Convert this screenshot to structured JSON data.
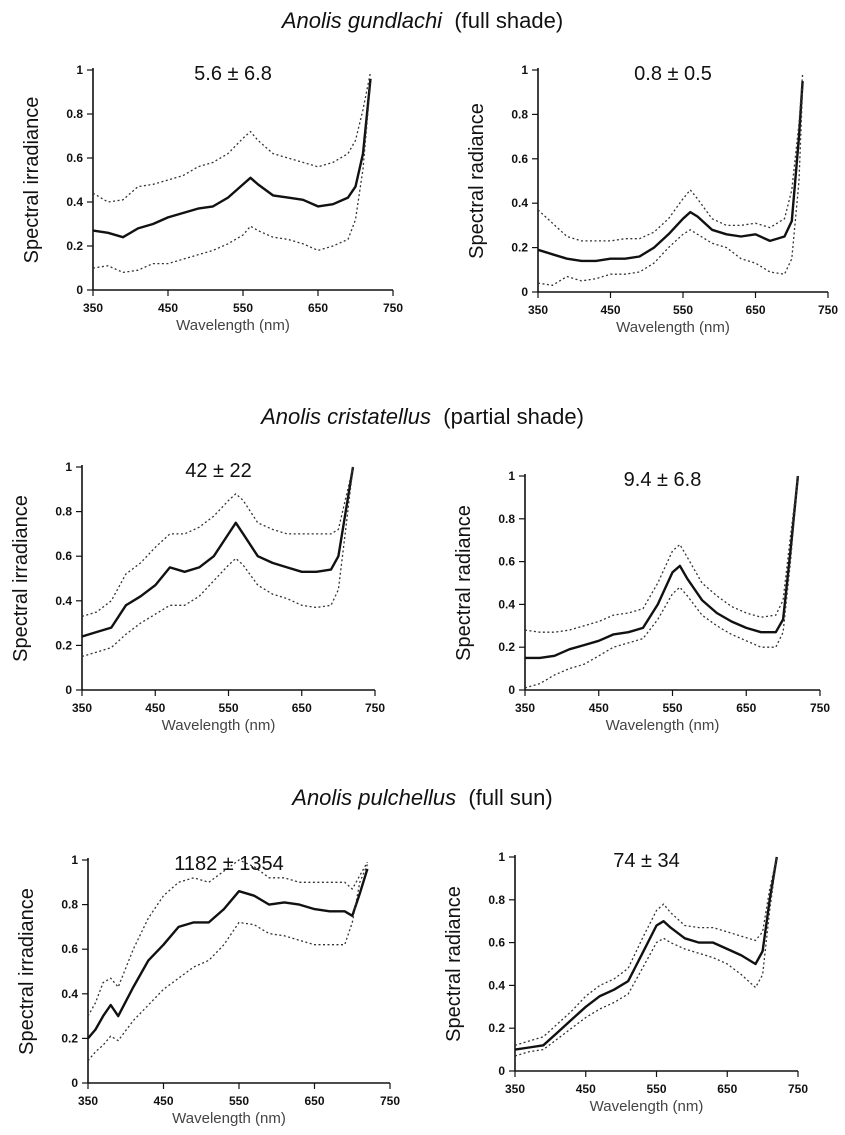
{
  "sections": [
    {
      "species": "Anolis gundlachi",
      "condition": "(full shade)"
    },
    {
      "species": "Anolis cristatellus",
      "condition": "(partial shade)"
    },
    {
      "species": "Anolis pulchellus",
      "condition": "(full sun)"
    }
  ],
  "chart_data": [
    {
      "type": "line",
      "title": "5.6 ± 6.8",
      "xlabel": "Wavelength (nm)",
      "ylabel": "Spectral irradiance",
      "xlim": [
        350,
        750
      ],
      "ylim": [
        0,
        1
      ],
      "xticks": [
        350,
        450,
        550,
        650,
        750
      ],
      "yticks": [
        0,
        0.2,
        0.4,
        0.6,
        0.8,
        1
      ],
      "x": [
        350,
        370,
        390,
        410,
        430,
        450,
        470,
        490,
        510,
        530,
        550,
        560,
        570,
        590,
        610,
        630,
        650,
        670,
        690,
        700,
        710,
        720
      ],
      "series": [
        {
          "style": "solid",
          "values": [
            0.27,
            0.26,
            0.24,
            0.28,
            0.3,
            0.33,
            0.35,
            0.37,
            0.38,
            0.42,
            0.48,
            0.51,
            0.48,
            0.43,
            0.42,
            0.41,
            0.38,
            0.39,
            0.42,
            0.47,
            0.62,
            0.96
          ]
        },
        {
          "style": "dotted",
          "values": [
            0.44,
            0.4,
            0.41,
            0.47,
            0.48,
            0.5,
            0.52,
            0.56,
            0.58,
            0.62,
            0.69,
            0.72,
            0.68,
            0.62,
            0.6,
            0.58,
            0.56,
            0.58,
            0.62,
            0.68,
            0.82,
            0.99
          ]
        },
        {
          "style": "dotted",
          "values": [
            0.1,
            0.11,
            0.08,
            0.09,
            0.12,
            0.12,
            0.14,
            0.16,
            0.18,
            0.21,
            0.25,
            0.29,
            0.27,
            0.24,
            0.23,
            0.21,
            0.18,
            0.2,
            0.23,
            0.32,
            0.55,
            0.94
          ]
        }
      ]
    },
    {
      "type": "line",
      "title": "0.8 ± 0.5",
      "xlabel": "Wavelength (nm)",
      "ylabel": "Spectral radiance",
      "xlim": [
        350,
        750
      ],
      "ylim": [
        0,
        1
      ],
      "xticks": [
        350,
        450,
        550,
        650,
        750
      ],
      "yticks": [
        0,
        0.2,
        0.4,
        0.6,
        0.8,
        1
      ],
      "x": [
        350,
        370,
        390,
        410,
        430,
        450,
        470,
        490,
        510,
        530,
        550,
        560,
        570,
        590,
        610,
        630,
        650,
        670,
        690,
        700,
        710,
        715
      ],
      "series": [
        {
          "style": "solid",
          "values": [
            0.19,
            0.17,
            0.15,
            0.14,
            0.14,
            0.15,
            0.15,
            0.16,
            0.2,
            0.26,
            0.33,
            0.36,
            0.34,
            0.28,
            0.26,
            0.25,
            0.26,
            0.23,
            0.25,
            0.32,
            0.7,
            0.95
          ]
        },
        {
          "style": "dotted",
          "values": [
            0.37,
            0.31,
            0.25,
            0.23,
            0.23,
            0.23,
            0.24,
            0.24,
            0.27,
            0.33,
            0.42,
            0.46,
            0.42,
            0.33,
            0.3,
            0.3,
            0.31,
            0.29,
            0.33,
            0.46,
            0.76,
            0.98
          ]
        },
        {
          "style": "dotted",
          "values": [
            0.04,
            0.03,
            0.07,
            0.05,
            0.06,
            0.08,
            0.08,
            0.09,
            0.13,
            0.2,
            0.26,
            0.28,
            0.26,
            0.22,
            0.2,
            0.15,
            0.13,
            0.09,
            0.08,
            0.15,
            0.5,
            0.92
          ]
        }
      ]
    },
    {
      "type": "line",
      "title": "42 ± 22",
      "xlabel": "Wavelength (nm)",
      "ylabel": "Spectral irradiance",
      "xlim": [
        350,
        750
      ],
      "ylim": [
        0,
        1
      ],
      "xticks": [
        350,
        450,
        550,
        650,
        750
      ],
      "yticks": [
        0,
        0.2,
        0.4,
        0.6,
        0.8,
        1
      ],
      "x": [
        350,
        370,
        390,
        410,
        430,
        450,
        470,
        490,
        510,
        530,
        550,
        560,
        570,
        590,
        610,
        630,
        650,
        670,
        690,
        700,
        710,
        720
      ],
      "series": [
        {
          "style": "solid",
          "values": [
            0.24,
            0.26,
            0.28,
            0.38,
            0.42,
            0.47,
            0.55,
            0.53,
            0.55,
            0.6,
            0.7,
            0.75,
            0.7,
            0.6,
            0.57,
            0.55,
            0.53,
            0.53,
            0.54,
            0.6,
            0.8,
            1.0
          ]
        },
        {
          "style": "dotted",
          "values": [
            0.33,
            0.35,
            0.4,
            0.52,
            0.57,
            0.64,
            0.7,
            0.7,
            0.73,
            0.78,
            0.85,
            0.88,
            0.85,
            0.75,
            0.72,
            0.7,
            0.7,
            0.7,
            0.7,
            0.72,
            0.86,
            1.0
          ]
        },
        {
          "style": "dotted",
          "values": [
            0.15,
            0.17,
            0.19,
            0.25,
            0.3,
            0.34,
            0.38,
            0.38,
            0.42,
            0.49,
            0.56,
            0.59,
            0.56,
            0.47,
            0.43,
            0.41,
            0.38,
            0.37,
            0.38,
            0.45,
            0.72,
            1.0
          ]
        }
      ]
    },
    {
      "type": "line",
      "title": "9.4 ± 6.8",
      "xlabel": "Wavelength (nm)",
      "ylabel": "Spectral radiance",
      "xlim": [
        350,
        750
      ],
      "ylim": [
        0,
        1
      ],
      "xticks": [
        350,
        450,
        550,
        650,
        750
      ],
      "yticks": [
        0,
        0.2,
        0.4,
        0.6,
        0.8,
        1
      ],
      "x": [
        350,
        370,
        390,
        410,
        430,
        450,
        470,
        490,
        510,
        530,
        550,
        560,
        570,
        590,
        610,
        630,
        650,
        670,
        690,
        700,
        710,
        720
      ],
      "series": [
        {
          "style": "solid",
          "values": [
            0.15,
            0.15,
            0.16,
            0.19,
            0.21,
            0.23,
            0.26,
            0.27,
            0.29,
            0.4,
            0.55,
            0.58,
            0.52,
            0.42,
            0.36,
            0.32,
            0.29,
            0.27,
            0.27,
            0.33,
            0.65,
            1.0
          ]
        },
        {
          "style": "dotted",
          "values": [
            0.28,
            0.27,
            0.27,
            0.28,
            0.3,
            0.32,
            0.35,
            0.36,
            0.38,
            0.5,
            0.65,
            0.68,
            0.62,
            0.5,
            0.44,
            0.39,
            0.36,
            0.34,
            0.35,
            0.42,
            0.72,
            1.0
          ]
        },
        {
          "style": "dotted",
          "values": [
            0.01,
            0.03,
            0.07,
            0.1,
            0.12,
            0.16,
            0.2,
            0.22,
            0.24,
            0.33,
            0.45,
            0.48,
            0.44,
            0.35,
            0.3,
            0.26,
            0.23,
            0.2,
            0.2,
            0.27,
            0.6,
            1.0
          ]
        }
      ]
    },
    {
      "type": "line",
      "title": "1182 ± 1354",
      "xlabel": "Wavelength (nm)",
      "ylabel": "Spectral irradiance",
      "xlim": [
        350,
        750
      ],
      "ylim": [
        0,
        1
      ],
      "xticks": [
        350,
        450,
        550,
        650,
        750
      ],
      "yticks": [
        0,
        0.2,
        0.4,
        0.6,
        0.8,
        1
      ],
      "x": [
        350,
        360,
        370,
        380,
        390,
        410,
        430,
        450,
        470,
        490,
        510,
        530,
        550,
        570,
        590,
        610,
        630,
        650,
        670,
        690,
        700,
        710,
        720
      ],
      "series": [
        {
          "style": "solid",
          "values": [
            0.2,
            0.24,
            0.3,
            0.35,
            0.3,
            0.43,
            0.55,
            0.62,
            0.7,
            0.72,
            0.72,
            0.78,
            0.86,
            0.84,
            0.8,
            0.81,
            0.8,
            0.78,
            0.77,
            0.77,
            0.75,
            0.85,
            0.96
          ]
        },
        {
          "style": "dotted",
          "values": [
            0.3,
            0.36,
            0.45,
            0.47,
            0.43,
            0.6,
            0.74,
            0.84,
            0.9,
            0.92,
            0.9,
            0.95,
            1.0,
            0.97,
            0.92,
            0.92,
            0.9,
            0.9,
            0.9,
            0.9,
            0.87,
            0.93,
            0.99
          ]
        },
        {
          "style": "dotted",
          "values": [
            0.1,
            0.14,
            0.17,
            0.21,
            0.19,
            0.28,
            0.35,
            0.42,
            0.47,
            0.52,
            0.55,
            0.62,
            0.72,
            0.71,
            0.67,
            0.66,
            0.64,
            0.62,
            0.62,
            0.62,
            0.72,
            0.9,
            0.98
          ]
        }
      ]
    },
    {
      "type": "line",
      "title": "74 ± 34",
      "xlabel": "Wavelength (nm)",
      "ylabel": "Spectral radiance",
      "xlim": [
        350,
        750
      ],
      "ylim": [
        0,
        1
      ],
      "xticks": [
        350,
        450,
        550,
        650,
        750
      ],
      "yticks": [
        0,
        0.2,
        0.4,
        0.6,
        0.8,
        1
      ],
      "x": [
        350,
        370,
        390,
        410,
        430,
        450,
        470,
        490,
        510,
        530,
        550,
        560,
        570,
        590,
        610,
        630,
        650,
        670,
        690,
        700,
        710,
        720
      ],
      "series": [
        {
          "style": "solid",
          "values": [
            0.1,
            0.11,
            0.12,
            0.18,
            0.24,
            0.3,
            0.35,
            0.38,
            0.42,
            0.55,
            0.68,
            0.7,
            0.67,
            0.62,
            0.6,
            0.6,
            0.57,
            0.54,
            0.5,
            0.56,
            0.8,
            1.0
          ]
        },
        {
          "style": "dotted",
          "values": [
            0.12,
            0.14,
            0.16,
            0.22,
            0.28,
            0.35,
            0.4,
            0.43,
            0.48,
            0.62,
            0.75,
            0.78,
            0.74,
            0.68,
            0.67,
            0.67,
            0.65,
            0.63,
            0.61,
            0.65,
            0.85,
            1.0
          ]
        },
        {
          "style": "dotted",
          "values": [
            0.07,
            0.09,
            0.1,
            0.15,
            0.2,
            0.25,
            0.29,
            0.32,
            0.36,
            0.48,
            0.6,
            0.62,
            0.6,
            0.57,
            0.55,
            0.53,
            0.5,
            0.45,
            0.39,
            0.45,
            0.75,
            1.0
          ]
        }
      ]
    }
  ]
}
